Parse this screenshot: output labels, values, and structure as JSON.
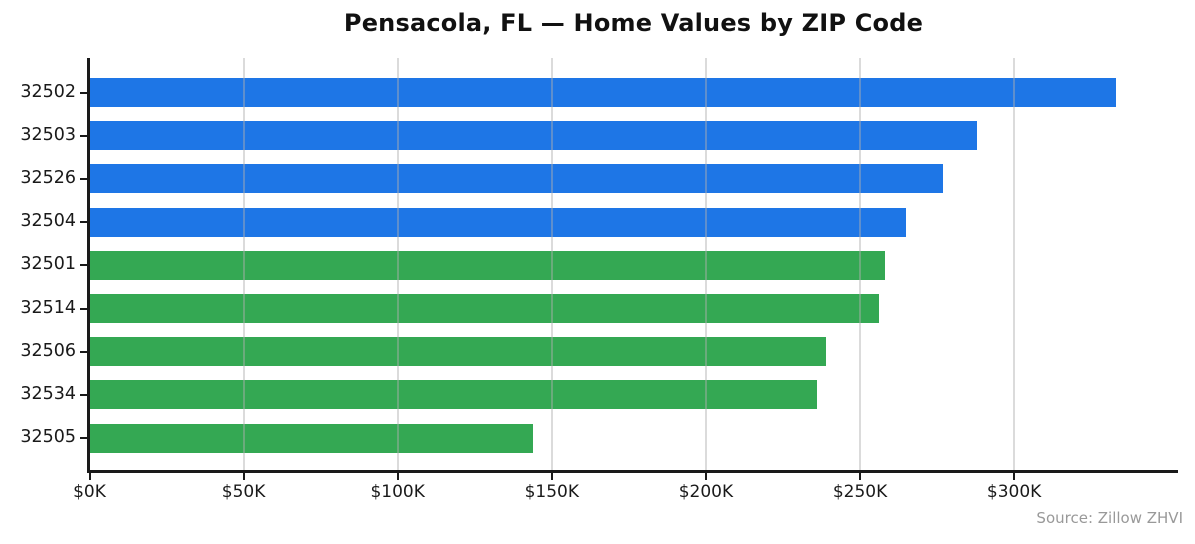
{
  "title": "Pensacola, FL — Home Values by ZIP Code",
  "source_note": "Source: Zillow ZHVI",
  "colors": {
    "blue_bar": "#1e76e6",
    "green_bar": "#34a853",
    "axis": "#1a1a1a",
    "grid": "#b0b0b0",
    "source_text": "#999999",
    "background": "#ffffff"
  },
  "chart_data": {
    "type": "bar",
    "orientation": "horizontal",
    "title": "Pensacola, FL — Home Values by ZIP Code",
    "xlabel": "",
    "ylabel": "",
    "categories": [
      "32502",
      "32503",
      "32526",
      "32504",
      "32501",
      "32514",
      "32506",
      "32534",
      "32505"
    ],
    "values": [
      333,
      288,
      277,
      265,
      258,
      256,
      239,
      236,
      144
    ],
    "values_unit": "USD thousands",
    "bar_colors": [
      "#1e76e6",
      "#1e76e6",
      "#1e76e6",
      "#1e76e6",
      "#34a853",
      "#34a853",
      "#34a853",
      "#34a853",
      "#34a853"
    ],
    "xlim": [
      0,
      353
    ],
    "xticks": [
      0,
      50,
      100,
      150,
      200,
      250,
      300
    ],
    "xtick_labels": [
      "$0K",
      "$50K",
      "$100K",
      "$150K",
      "$200K",
      "$250K",
      "$300K"
    ],
    "grid": "x",
    "legend": "none",
    "source": "Source: Zillow ZHVI"
  }
}
